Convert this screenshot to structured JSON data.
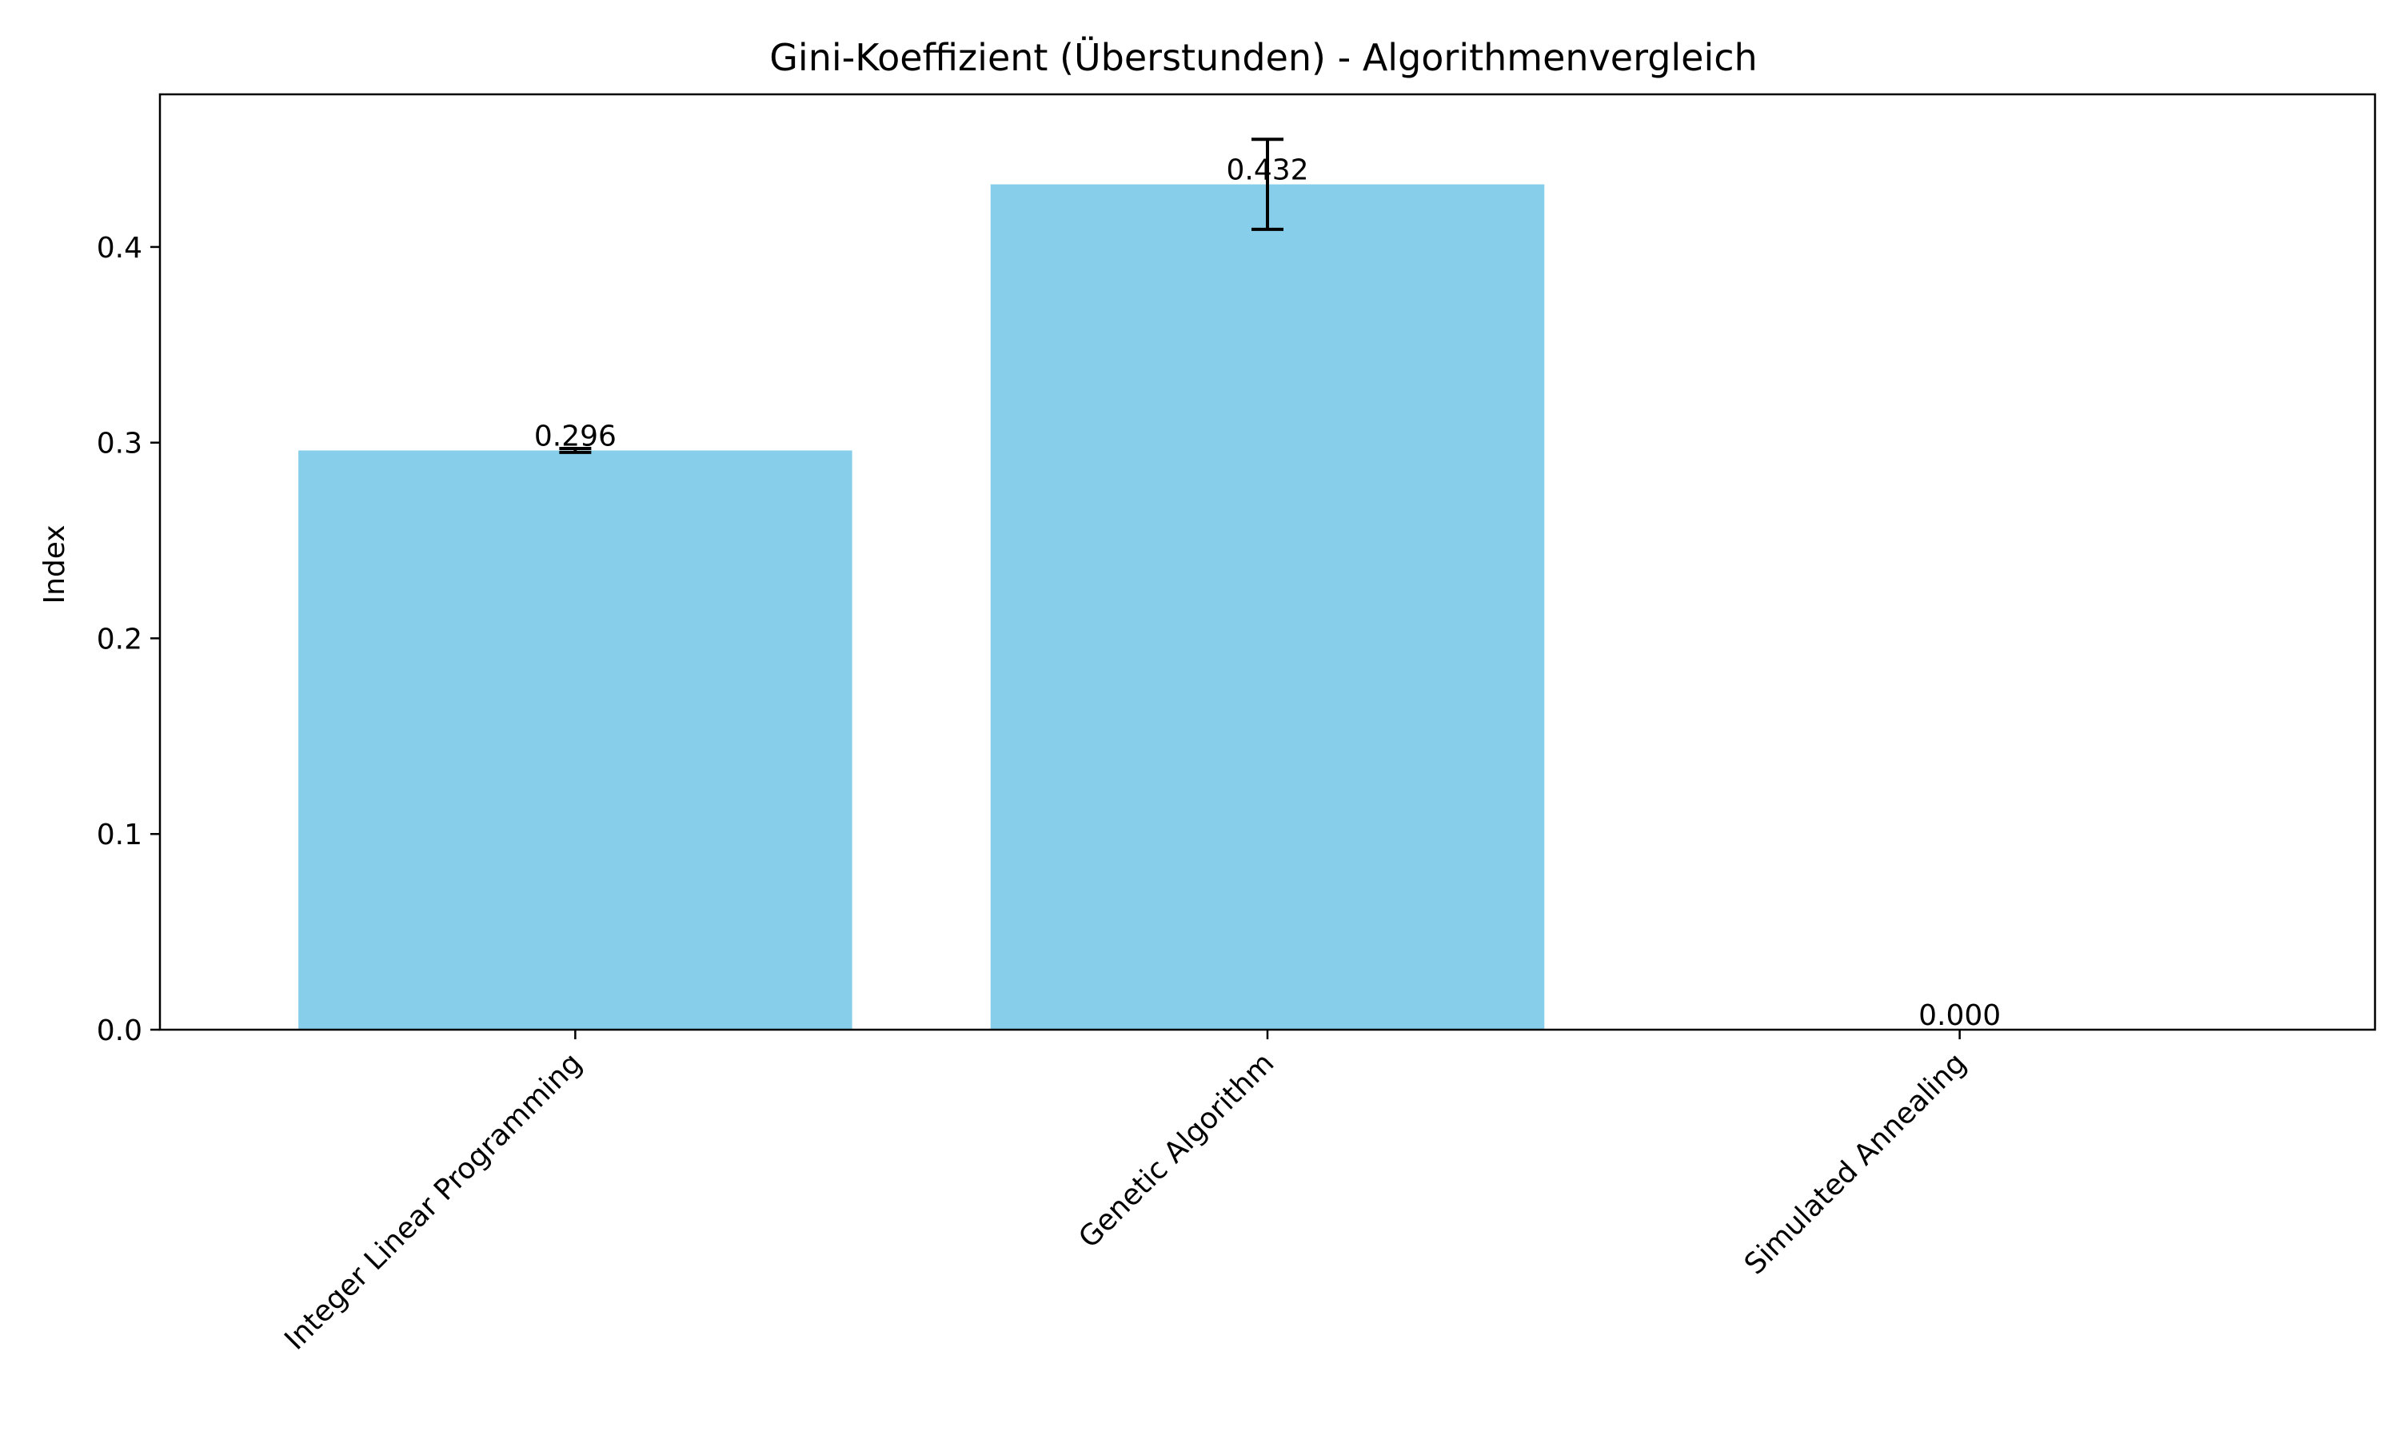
{
  "chart_data": {
    "type": "bar",
    "title": "Gini-Koeffizient (Überstunden) - Algorithmenvergleich",
    "xlabel": "",
    "ylabel": "Index",
    "categories": [
      "Integer Linear Programming",
      "Genetic Algorithm",
      "Simulated Annealing"
    ],
    "values": [
      0.296,
      0.432,
      0.0
    ],
    "errors": [
      0.001,
      0.023,
      0.0
    ],
    "value_labels": [
      "0.296",
      "0.432",
      "0.000"
    ],
    "ylim": [
      0,
      0.478
    ],
    "yticks": [
      0.0,
      0.1,
      0.2,
      0.3,
      0.4
    ],
    "ytick_labels": [
      "0.0",
      "0.1",
      "0.2",
      "0.3",
      "0.4"
    ],
    "grid": false,
    "bar_color": "#87CEEB",
    "error_color": "#000000"
  }
}
